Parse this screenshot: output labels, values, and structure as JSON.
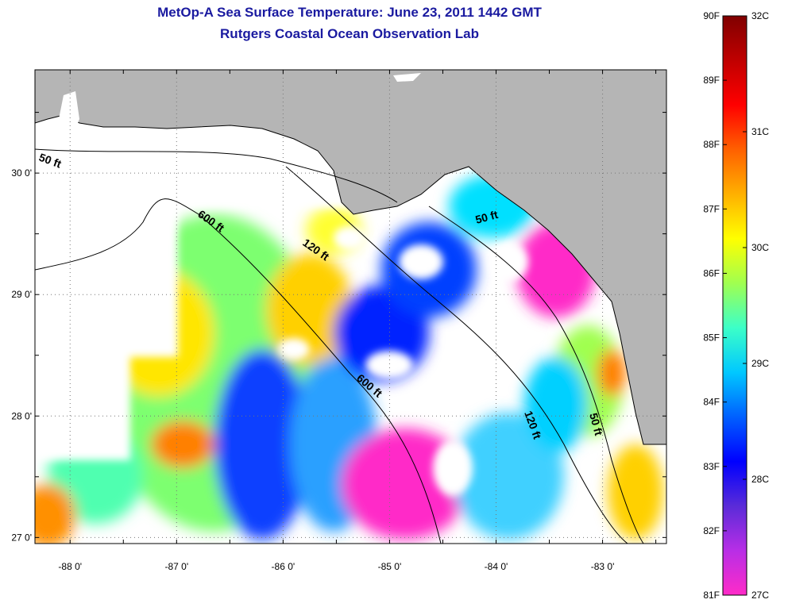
{
  "title_line1": "MetOp-A Sea Surface Temperature:  June 23, 2011 1442 GMT",
  "title_line2": "Rutgers Coastal Ocean Observation Lab",
  "colors": {
    "land": "#b5b5b5",
    "no_data": "#ffffff",
    "grid": "#777777",
    "title": "#1a1aa0"
  },
  "map": {
    "lon_range": [
      -88.33,
      -82.4
    ],
    "lat_range": [
      26.95,
      30.85
    ],
    "lon_ticks": [
      {
        "value": -88,
        "label": "-88 0'"
      },
      {
        "value": -87,
        "label": "-87 0'"
      },
      {
        "value": -86,
        "label": "-86 0'"
      },
      {
        "value": -85,
        "label": "-85 0'"
      },
      {
        "value": -84,
        "label": "-84 0'"
      },
      {
        "value": -83,
        "label": "-83 0'"
      }
    ],
    "lat_ticks": [
      {
        "value": 27,
        "label": "27 0'"
      },
      {
        "value": 28,
        "label": "28 0'"
      },
      {
        "value": 29,
        "label": "29 0'"
      },
      {
        "value": 30,
        "label": "30 0'"
      }
    ],
    "bathymetry_labels": [
      "50 ft",
      "600 ft",
      "120 ft",
      "50 ft",
      "600 ft",
      "120 ft",
      "50 ft"
    ]
  },
  "colorbar": {
    "fahrenheit_labels": [
      "90F",
      "89F",
      "88F",
      "87F",
      "86F",
      "85F",
      "84F",
      "83F",
      "82F",
      "81F"
    ],
    "celsius_labels": [
      "32C",
      "31C",
      "30C",
      "29C",
      "28C",
      "27C"
    ],
    "range_celsius": [
      27,
      32
    ],
    "gradient_stops": [
      "#ff2bc8",
      "#b82ee6",
      "#5a2bd8",
      "#0000ff",
      "#0060ff",
      "#00c8ff",
      "#3cffc8",
      "#a0ff50",
      "#ffff00",
      "#ffb000",
      "#ff6000",
      "#ff0000",
      "#c00000",
      "#800000"
    ]
  }
}
